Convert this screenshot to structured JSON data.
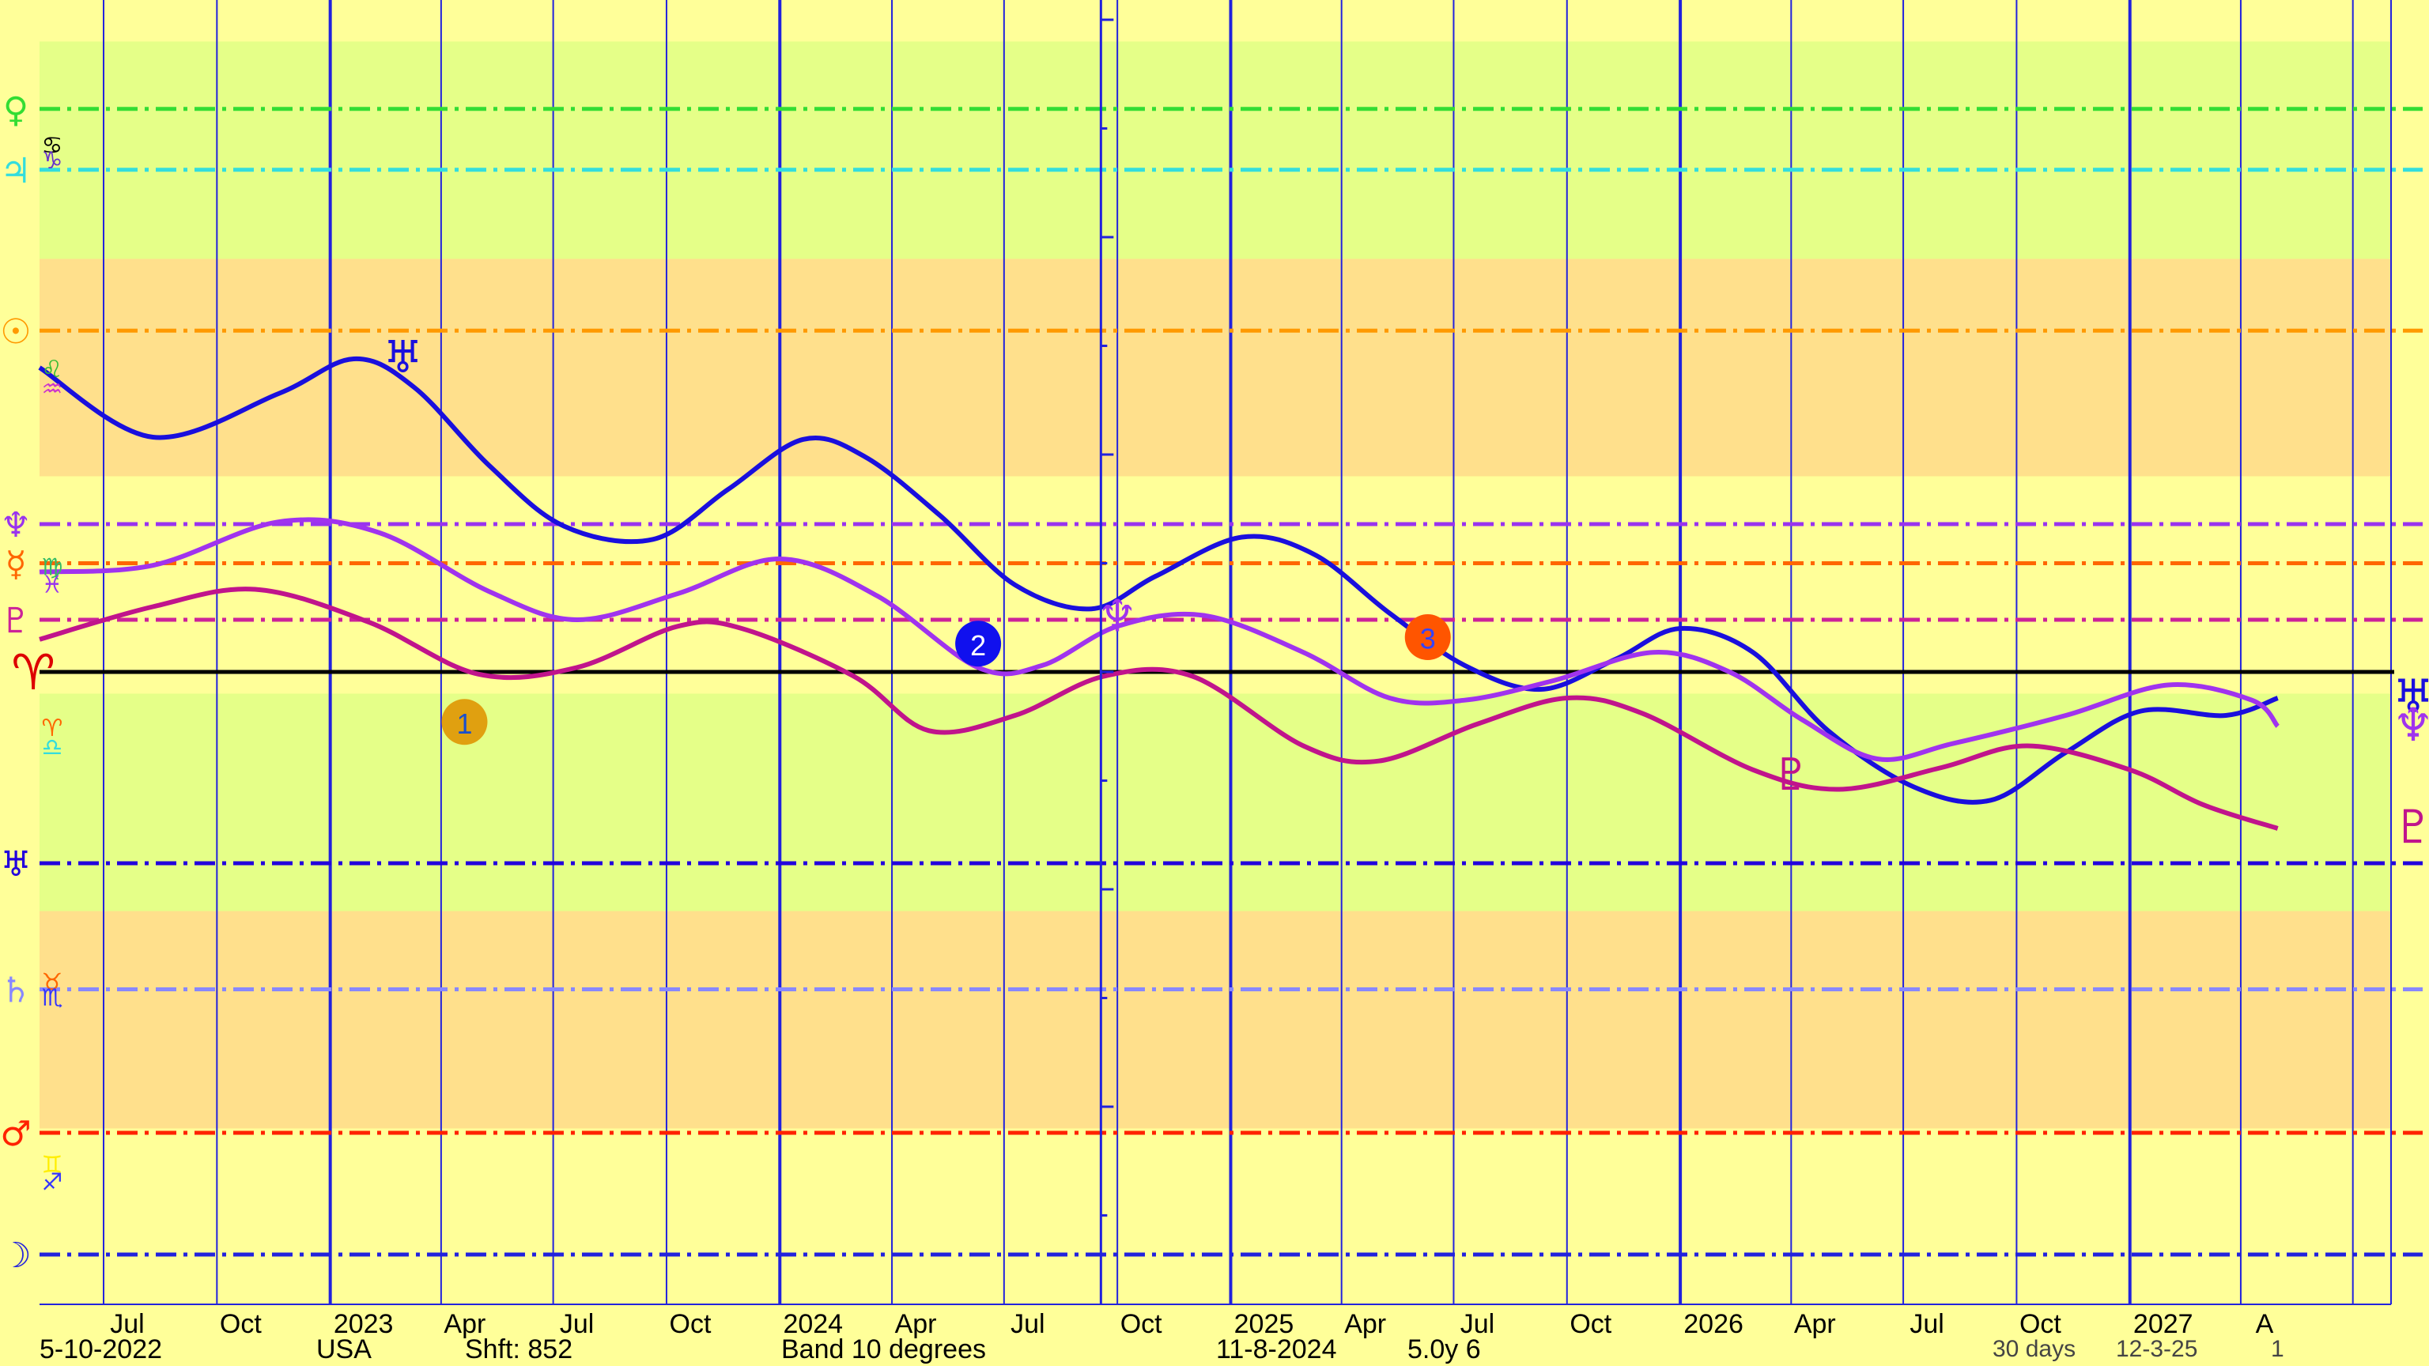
{
  "chart_data": {
    "type": "line",
    "x_axis": {
      "start": "2022-05-10",
      "end": "2027-08-01",
      "month_labels": [
        {
          "date": "2022-07-01",
          "label": "Jul"
        },
        {
          "date": "2022-10-01",
          "label": "Oct"
        },
        {
          "date": "2023-01-01",
          "label": "2023"
        },
        {
          "date": "2023-04-01",
          "label": "Apr"
        },
        {
          "date": "2023-07-01",
          "label": "Jul"
        },
        {
          "date": "2023-10-01",
          "label": "Oct"
        },
        {
          "date": "2024-01-01",
          "label": "2024"
        },
        {
          "date": "2024-04-01",
          "label": "Apr"
        },
        {
          "date": "2024-07-01",
          "label": "Jul"
        },
        {
          "date": "2024-10-01",
          "label": "Oct"
        },
        {
          "date": "2025-01-01",
          "label": "2025"
        },
        {
          "date": "2025-04-01",
          "label": "Apr"
        },
        {
          "date": "2025-07-01",
          "label": "Jul"
        },
        {
          "date": "2025-10-01",
          "label": "Oct"
        },
        {
          "date": "2026-01-01",
          "label": "2026"
        },
        {
          "date": "2026-04-01",
          "label": "Apr"
        },
        {
          "date": "2026-07-01",
          "label": "Jul"
        },
        {
          "date": "2026-10-01",
          "label": "Oct"
        },
        {
          "date": "2027-01-01",
          "label": "2027"
        },
        {
          "date": "2027-04-01",
          "label": "A"
        }
      ],
      "current_date": "2024-11-08"
    },
    "y_range": [
      0,
      130
    ],
    "bands": [
      {
        "from": 116,
        "to": 126,
        "color": "#e5ff88"
      },
      {
        "from": 106,
        "to": 116,
        "color": "#ffe08c"
      },
      {
        "from": 96,
        "to": 106,
        "color": "#ffff99"
      },
      {
        "from": 86,
        "to": 96,
        "color": "#e5ff88"
      },
      {
        "from": 76,
        "to": 86,
        "color": "#ffe08c"
      },
      {
        "from": 66,
        "to": 76,
        "color": "#ffff99"
      }
    ],
    "reference_lines": [
      {
        "glyph": "♀",
        "value": 122.9,
        "color": "#33dd33"
      },
      {
        "glyph": "♃",
        "value": 120.1,
        "color": "#33dddd"
      },
      {
        "glyph": "☉",
        "value": 112.7,
        "color": "#ff9900"
      },
      {
        "glyph": "♆",
        "value": 103.8,
        "color": "#9933ee"
      },
      {
        "glyph": "☿",
        "value": 102.0,
        "color": "#ff6600"
      },
      {
        "glyph": "♇",
        "value": 99.4,
        "color": "#cc2299"
      },
      {
        "glyph": "♅",
        "value": 88.2,
        "color": "#2200dd"
      },
      {
        "glyph": "♄",
        "value": 82.4,
        "color": "#8888ff"
      },
      {
        "glyph": "♂",
        "value": 75.8,
        "color": "#ff2200"
      },
      {
        "glyph": "☽",
        "value": 70.2,
        "color": "#2222dd"
      }
    ],
    "zero_line": {
      "glyph": "♈",
      "value": 97.0,
      "color": "#dd0000"
    },
    "sign_glyphs": [
      {
        "glyph": "♋",
        "value": 121.3,
        "color": "#000000"
      },
      {
        "glyph": "♑",
        "value": 120.6,
        "color": "#6633cc"
      },
      {
        "glyph": "♌",
        "value": 111.0,
        "color": "#33bb33"
      },
      {
        "glyph": "♒",
        "value": 110.1,
        "color": "#cc33cc"
      },
      {
        "glyph": "♍",
        "value": 101.9,
        "color": "#33bb66"
      },
      {
        "glyph": "♓",
        "value": 101.1,
        "color": "#9933ee"
      },
      {
        "glyph": "♈",
        "value": 94.5,
        "color": "#ff6600"
      },
      {
        "glyph": "♎",
        "value": 93.6,
        "color": "#33dddd"
      },
      {
        "glyph": "♉",
        "value": 82.8,
        "color": "#ff6600"
      },
      {
        "glyph": "♏",
        "value": 82.1,
        "color": "#3333ff"
      },
      {
        "glyph": "♊",
        "value": 74.4,
        "color": "#ffee00"
      },
      {
        "glyph": "♐",
        "value": 73.6,
        "color": "#3333ff"
      }
    ],
    "series": [
      {
        "glyph": "♅",
        "color": "#1a0fdd",
        "points": [
          [
            "2022-05-10",
            111.0
          ],
          [
            "2022-08-10",
            107.8
          ],
          [
            "2022-11-20",
            109.8
          ],
          [
            "2023-01-20",
            111.4
          ],
          [
            "2023-03-10",
            110.1
          ],
          [
            "2023-05-10",
            106.5
          ],
          [
            "2023-07-10",
            103.7
          ],
          [
            "2023-09-20",
            103.1
          ],
          [
            "2023-11-20",
            105.4
          ],
          [
            "2024-01-20",
            107.7
          ],
          [
            "2024-03-10",
            106.9
          ],
          [
            "2024-05-10",
            104.2
          ],
          [
            "2024-07-10",
            101.0
          ],
          [
            "2024-09-10",
            99.9
          ],
          [
            "2024-11-01",
            101.4
          ],
          [
            "2025-01-10",
            103.2
          ],
          [
            "2025-03-10",
            102.4
          ],
          [
            "2025-05-10",
            99.7
          ],
          [
            "2025-07-10",
            97.3
          ],
          [
            "2025-09-10",
            96.2
          ],
          [
            "2025-11-10",
            97.6
          ],
          [
            "2026-01-01",
            99.0
          ],
          [
            "2026-03-01",
            97.9
          ],
          [
            "2026-05-01",
            94.3
          ],
          [
            "2026-07-10",
            91.7
          ],
          [
            "2026-09-10",
            91.1
          ],
          [
            "2026-11-10",
            93.3
          ],
          [
            "2027-01-10",
            95.2
          ],
          [
            "2027-03-20",
            95.0
          ],
          [
            "2027-05-01",
            95.8
          ]
        ],
        "end_value": 95.8
      },
      {
        "glyph": "♆",
        "color": "#a033ee",
        "points": [
          [
            "2022-05-10",
            101.6
          ],
          [
            "2022-08-10",
            101.9
          ],
          [
            "2022-11-20",
            103.9
          ],
          [
            "2023-02-10",
            103.4
          ],
          [
            "2023-05-10",
            100.7
          ],
          [
            "2023-07-20",
            99.4
          ],
          [
            "2023-10-10",
            100.6
          ],
          [
            "2024-01-01",
            102.2
          ],
          [
            "2024-03-20",
            100.5
          ],
          [
            "2024-06-10",
            97.2
          ],
          [
            "2024-08-01",
            97.3
          ],
          [
            "2024-10-01",
            99.1
          ],
          [
            "2024-12-10",
            99.6
          ],
          [
            "2025-03-01",
            97.9
          ],
          [
            "2025-05-10",
            95.8
          ],
          [
            "2025-07-10",
            95.7
          ],
          [
            "2025-09-20",
            96.6
          ],
          [
            "2025-12-10",
            97.9
          ],
          [
            "2026-02-10",
            97.0
          ],
          [
            "2026-04-10",
            94.8
          ],
          [
            "2026-06-10",
            93.0
          ],
          [
            "2026-08-10",
            93.7
          ],
          [
            "2026-11-10",
            95.0
          ],
          [
            "2027-02-01",
            96.4
          ],
          [
            "2027-04-10",
            95.7
          ],
          [
            "2027-05-01",
            94.5
          ]
        ],
        "end_value": 94.5
      },
      {
        "glyph": "♇",
        "color": "#c0148c",
        "points": [
          [
            "2022-05-10",
            98.5
          ],
          [
            "2022-08-10",
            100.0
          ],
          [
            "2022-11-01",
            100.8
          ],
          [
            "2023-02-01",
            99.3
          ],
          [
            "2023-05-01",
            96.9
          ],
          [
            "2023-07-20",
            97.2
          ],
          [
            "2023-10-10",
            99.1
          ],
          [
            "2023-12-01",
            99.0
          ],
          [
            "2024-03-01",
            96.8
          ],
          [
            "2024-05-01",
            94.3
          ],
          [
            "2024-07-10",
            95.0
          ],
          [
            "2024-09-20",
            96.8
          ],
          [
            "2024-12-01",
            96.8
          ],
          [
            "2025-03-01",
            93.6
          ],
          [
            "2025-05-01",
            92.9
          ],
          [
            "2025-07-20",
            94.6
          ],
          [
            "2025-10-01",
            95.8
          ],
          [
            "2025-12-01",
            95.1
          ],
          [
            "2026-03-01",
            92.5
          ],
          [
            "2026-05-10",
            91.6
          ],
          [
            "2026-08-01",
            92.6
          ],
          [
            "2026-10-10",
            93.6
          ],
          [
            "2027-01-01",
            92.5
          ],
          [
            "2027-03-01",
            90.9
          ],
          [
            "2027-05-01",
            89.8
          ]
        ],
        "end_value": 89.8
      }
    ],
    "point_glyphs": [
      {
        "glyph": "♅",
        "date": "2023-03-01",
        "value": 111.0,
        "color": "#1a0fdd"
      },
      {
        "glyph": "♆",
        "date": "2024-10-01",
        "value": 99.1,
        "color": "#a033ee"
      },
      {
        "glyph": "♇",
        "date": "2026-04-01",
        "value": 91.8,
        "color": "#c0148c"
      }
    ],
    "numbered_markers": [
      {
        "label": "1",
        "date": "2023-04-20",
        "value": 94.7,
        "color": "#e0a010"
      },
      {
        "label": "2",
        "date": "2024-06-10",
        "value": 98.3,
        "color": "#1010ee"
      },
      {
        "label": "3",
        "date": "2025-06-10",
        "value": 98.6,
        "color": "#ff5500"
      }
    ]
  },
  "footer": {
    "start_date": "5-10-2022",
    "location": "USA",
    "shift": "Shft: 852",
    "band": "Band 10 degrees",
    "current_date": "11-8-2024",
    "span": "5.0y  6",
    "step": "30 days",
    "run_date": "12-3-25",
    "page": "1"
  }
}
